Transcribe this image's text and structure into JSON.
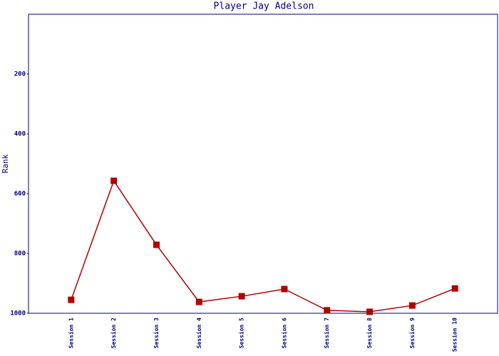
{
  "chart_data": {
    "type": "line",
    "title": "Player Jay Adelson",
    "y_label": "Rank",
    "categories": [
      "Session 1",
      "Session 2",
      "Session 3",
      "Session 4",
      "Session 5",
      "Session 6",
      "Session 7",
      "Session 8",
      "Session 9",
      "Session 10"
    ],
    "series": [
      {
        "name": "Rank",
        "color": "#b20000",
        "values": [
          955,
          557,
          771,
          962,
          943,
          919,
          990,
          995,
          974,
          917
        ]
      }
    ],
    "ylim": [
      1000,
      0
    ],
    "yticks": [
      200,
      400,
      600,
      800,
      1000
    ]
  }
}
